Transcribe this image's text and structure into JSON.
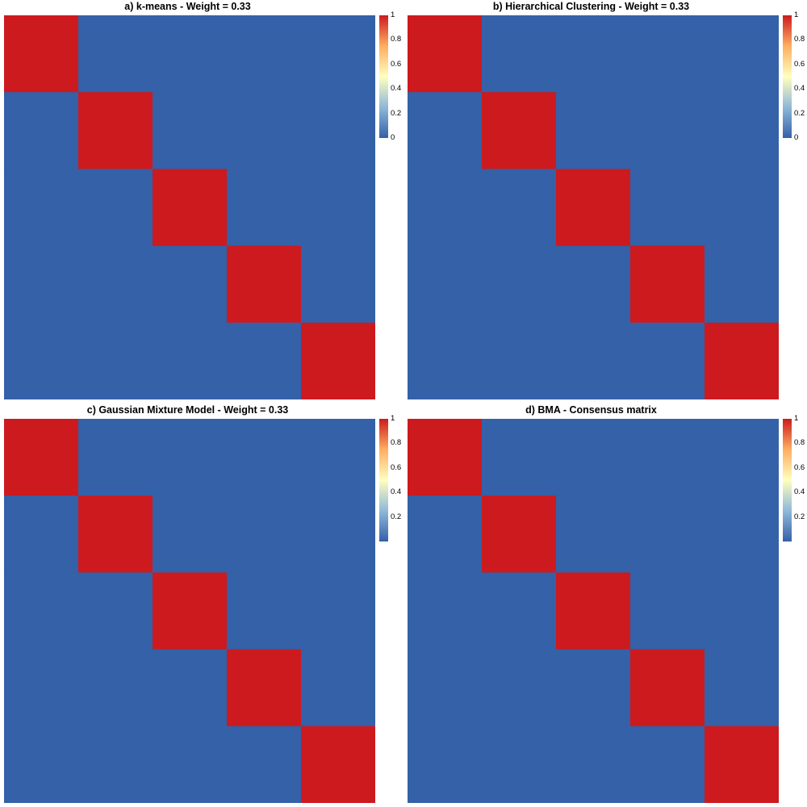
{
  "colors": {
    "low": "#3461a8",
    "mid": "#ffffbf",
    "high": "#cc1a1f",
    "gradient_stops": [
      "#3461a8",
      "#8fb8d8",
      "#ffffbf",
      "#fdae61",
      "#cc1a1f"
    ]
  },
  "chart_data": [
    {
      "type": "heatmap",
      "title": "a) k-means - Weight = 0.33",
      "n_blocks": 5,
      "matrix": [
        [
          1,
          0,
          0,
          0,
          0
        ],
        [
          0,
          1,
          0,
          0,
          0
        ],
        [
          0,
          0,
          1,
          0,
          0
        ],
        [
          0,
          0,
          0,
          1,
          0
        ],
        [
          0,
          0,
          0,
          0,
          1
        ]
      ],
      "legend": {
        "range": [
          0,
          1
        ],
        "ticks": [
          "1",
          "0.8",
          "0.6",
          "0.4",
          "0.2",
          "0"
        ],
        "position": "right"
      }
    },
    {
      "type": "heatmap",
      "title": "b) Hierarchical Clustering - Weight = 0.33",
      "n_blocks": 5,
      "matrix": [
        [
          1,
          0,
          0,
          0,
          0
        ],
        [
          0,
          1,
          0,
          0,
          0
        ],
        [
          0,
          0,
          1,
          0,
          0
        ],
        [
          0,
          0,
          0,
          1,
          0
        ],
        [
          0,
          0,
          0,
          0,
          1
        ]
      ],
      "legend": {
        "range": [
          0,
          1
        ],
        "ticks": [
          "1",
          "0.8",
          "0.6",
          "0.4",
          "0.2",
          "0"
        ],
        "position": "right"
      }
    },
    {
      "type": "heatmap",
      "title": "c) Gaussian Mixture Model - Weight = 0.33",
      "n_blocks": 5,
      "matrix": [
        [
          1,
          0,
          0,
          0,
          0
        ],
        [
          0,
          1,
          0,
          0,
          0
        ],
        [
          0,
          0,
          1,
          0,
          0
        ],
        [
          0,
          0,
          0,
          1,
          0
        ],
        [
          0,
          0,
          0,
          0,
          1
        ]
      ],
      "legend": {
        "range": [
          0,
          1
        ],
        "ticks": [
          "1",
          "0.8",
          "0.6",
          "0.4",
          "0.2"
        ],
        "position": "right"
      }
    },
    {
      "type": "heatmap",
      "title": "d) BMA - Consensus matrix",
      "n_blocks": 5,
      "matrix": [
        [
          1,
          0,
          0,
          0,
          0
        ],
        [
          0,
          1,
          0,
          0,
          0
        ],
        [
          0,
          0,
          1,
          0,
          0
        ],
        [
          0,
          0,
          0,
          1,
          0
        ],
        [
          0,
          0,
          0,
          0,
          1
        ]
      ],
      "legend": {
        "range": [
          0,
          1
        ],
        "ticks": [
          "1",
          "0.8",
          "0.6",
          "0.4",
          "0.2"
        ],
        "position": "right"
      }
    }
  ]
}
